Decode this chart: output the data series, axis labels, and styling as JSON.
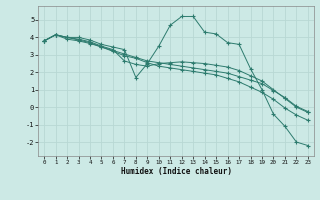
{
  "x_all": [
    0,
    1,
    2,
    3,
    4,
    5,
    6,
    7,
    8,
    9,
    10,
    11,
    12,
    13,
    14,
    15,
    16,
    17,
    18,
    19,
    20,
    21,
    22,
    23
  ],
  "line1": [
    3.8,
    4.15,
    4.0,
    4.0,
    3.85,
    3.6,
    3.45,
    3.3,
    1.7,
    2.5,
    3.5,
    4.7,
    5.2,
    5.2,
    4.3,
    4.2,
    3.7,
    3.6,
    2.2,
    1.0,
    -0.4,
    -1.1,
    -2.0,
    -2.2
  ],
  "line2": [
    3.8,
    4.15,
    4.0,
    3.9,
    3.75,
    3.5,
    3.3,
    2.65,
    2.45,
    2.35,
    2.5,
    2.55,
    2.6,
    2.55,
    2.5,
    2.4,
    2.3,
    2.1,
    1.8,
    1.5,
    1.0,
    0.5,
    0.0,
    -0.3
  ],
  "line3": [
    3.8,
    4.15,
    4.0,
    3.85,
    3.7,
    3.45,
    3.2,
    2.95,
    2.8,
    2.55,
    2.35,
    2.25,
    2.15,
    2.05,
    1.95,
    1.85,
    1.65,
    1.45,
    1.15,
    0.85,
    0.45,
    -0.05,
    -0.45,
    -0.75
  ],
  "line4": [
    3.8,
    4.15,
    3.9,
    3.8,
    3.65,
    3.45,
    3.25,
    3.05,
    2.85,
    2.65,
    2.55,
    2.45,
    2.35,
    2.25,
    2.15,
    2.05,
    1.95,
    1.75,
    1.55,
    1.35,
    0.95,
    0.55,
    0.05,
    -0.25
  ],
  "bg_color": "#cce9e5",
  "grid_color": "#b8d8d4",
  "line_color": "#2d7b6e",
  "xlabel": "Humidex (Indice chaleur)",
  "ylim": [
    -2.8,
    5.8
  ],
  "xlim": [
    -0.5,
    23.5
  ],
  "yticks": [
    -2,
    -1,
    0,
    1,
    2,
    3,
    4,
    5
  ],
  "xticks": [
    0,
    1,
    2,
    3,
    4,
    5,
    6,
    7,
    8,
    9,
    10,
    11,
    12,
    13,
    14,
    15,
    16,
    17,
    18,
    19,
    20,
    21,
    22,
    23
  ]
}
